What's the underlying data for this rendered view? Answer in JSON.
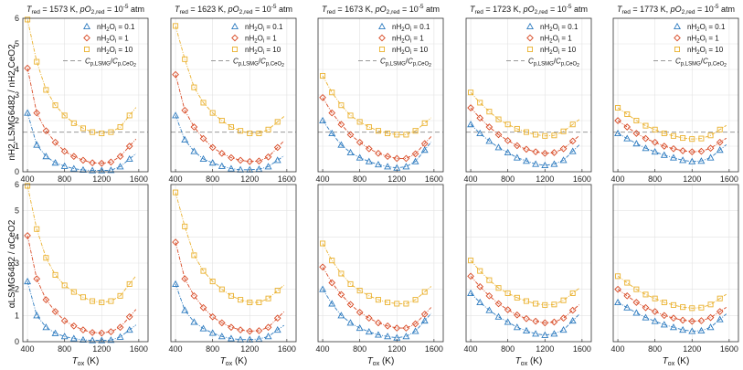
{
  "figure": {
    "ylabel_top": "nH2,LSMG6482 / nH2,CeO2",
    "ylabel_bottom": "αLSMG6482 / αCeO2",
    "xlabel": "Tox (K)"
  },
  "legend": [
    "nH2Oi = 0.1",
    "nH2Oi = 1",
    "nH2Oi = 10",
    "Cp,LSMG/Cp,CeO2"
  ],
  "axes": {
    "x_ticks": [
      400,
      800,
      1200,
      1600
    ],
    "y_ticks": [
      0,
      1,
      2,
      3,
      4,
      5,
      6
    ]
  },
  "colors": {
    "s01": "#2f7cc0",
    "s1": "#d84a25",
    "s10": "#eab12e",
    "ref": "#999999"
  },
  "chart_data": [
    {
      "type": "line",
      "title": "Tred = 1573 K, pO2,red = 10^-5 atm",
      "xlim": [
        350,
        1700
      ],
      "ylim": [
        0,
        6
      ],
      "grid": true,
      "ref_line": 1.55,
      "series": [
        {
          "name": "nH2Oi = 0.1",
          "top": {
            "x": [
              400,
              500,
              600,
              700,
              800,
              900,
              1000,
              1100,
              1200,
              1300,
              1400,
              1500
            ],
            "y": [
              2.3,
              1.05,
              0.6,
              0.35,
              0.22,
              0.12,
              0.07,
              0.05,
              0.05,
              0.06,
              0.2,
              0.5
            ]
          },
          "bottom": {
            "x": [
              400,
              500,
              600,
              700,
              800,
              900,
              1000,
              1100,
              1200,
              1300,
              1400,
              1500
            ],
            "y": [
              2.3,
              1.0,
              0.55,
              0.32,
              0.2,
              0.12,
              0.07,
              0.05,
              0.05,
              0.06,
              0.18,
              0.45
            ]
          }
        },
        {
          "name": "nH2Oi = 1",
          "top": {
            "x": [
              400,
              500,
              600,
              700,
              800,
              900,
              1000,
              1100,
              1200,
              1300,
              1400,
              1500
            ],
            "y": [
              4.05,
              2.3,
              1.6,
              1.15,
              0.8,
              0.6,
              0.45,
              0.35,
              0.33,
              0.38,
              0.6,
              1.0
            ]
          },
          "bottom": {
            "x": [
              400,
              500,
              600,
              700,
              800,
              900,
              1000,
              1100,
              1200,
              1300,
              1400,
              1500
            ],
            "y": [
              4.05,
              2.4,
              1.6,
              1.15,
              0.8,
              0.6,
              0.45,
              0.35,
              0.33,
              0.38,
              0.55,
              0.95
            ]
          }
        },
        {
          "name": "nH2Oi = 10",
          "top": {
            "x": [
              400,
              500,
              600,
              700,
              800,
              900,
              1000,
              1100,
              1200,
              1300,
              1400,
              1500
            ],
            "y": [
              5.95,
              4.3,
              3.2,
              2.6,
              2.2,
              1.9,
              1.7,
              1.55,
              1.5,
              1.55,
              1.75,
              2.2
            ]
          },
          "bottom": {
            "x": [
              400,
              500,
              600,
              700,
              800,
              900,
              1000,
              1100,
              1200,
              1300,
              1400,
              1500
            ],
            "y": [
              5.95,
              4.3,
              3.2,
              2.55,
              2.15,
              1.9,
              1.7,
              1.55,
              1.5,
              1.55,
              1.75,
              2.2
            ]
          }
        }
      ]
    },
    {
      "type": "line",
      "title": "Tred = 1623 K, pO2,red = 10^-5 atm",
      "xlim": [
        350,
        1700
      ],
      "ylim": [
        0,
        6
      ],
      "grid": true,
      "ref_line": 1.55,
      "series": [
        {
          "name": "nH2Oi = 0.1",
          "top": {
            "x": [
              400,
              500,
              600,
              700,
              800,
              900,
              1000,
              1100,
              1200,
              1300,
              1400,
              1500
            ],
            "y": [
              2.2,
              1.25,
              0.8,
              0.5,
              0.35,
              0.22,
              0.12,
              0.08,
              0.08,
              0.1,
              0.2,
              0.45
            ]
          },
          "bottom": {
            "x": [
              400,
              500,
              600,
              700,
              800,
              900,
              1000,
              1100,
              1200,
              1300,
              1400,
              1500
            ],
            "y": [
              2.2,
              1.2,
              0.75,
              0.5,
              0.33,
              0.2,
              0.12,
              0.08,
              0.08,
              0.1,
              0.2,
              0.45
            ]
          }
        },
        {
          "name": "nH2Oi = 1",
          "top": {
            "x": [
              400,
              500,
              600,
              700,
              800,
              900,
              1000,
              1100,
              1200,
              1300,
              1400,
              1500
            ],
            "y": [
              3.8,
              2.4,
              1.75,
              1.3,
              0.95,
              0.72,
              0.55,
              0.45,
              0.4,
              0.42,
              0.58,
              0.95
            ]
          },
          "bottom": {
            "x": [
              400,
              500,
              600,
              700,
              800,
              900,
              1000,
              1100,
              1200,
              1300,
              1400,
              1500
            ],
            "y": [
              3.8,
              2.4,
              1.75,
              1.3,
              0.95,
              0.72,
              0.55,
              0.45,
              0.4,
              0.42,
              0.55,
              0.9
            ]
          }
        },
        {
          "name": "nH2Oi = 10",
          "top": {
            "x": [
              400,
              500,
              600,
              700,
              800,
              900,
              1000,
              1100,
              1200,
              1300,
              1400,
              1500
            ],
            "y": [
              5.7,
              4.4,
              3.3,
              2.7,
              2.3,
              2.0,
              1.75,
              1.6,
              1.5,
              1.5,
              1.65,
              1.95
            ]
          },
          "bottom": {
            "x": [
              400,
              500,
              600,
              700,
              800,
              900,
              1000,
              1100,
              1200,
              1300,
              1400,
              1500
            ],
            "y": [
              5.7,
              4.4,
              3.3,
              2.7,
              2.3,
              2.0,
              1.75,
              1.6,
              1.5,
              1.5,
              1.65,
              1.95
            ]
          }
        }
      ]
    },
    {
      "type": "line",
      "title": "Tred = 1673 K, pO2,red = 10^-5 atm",
      "xlim": [
        350,
        1700
      ],
      "ylim": [
        0,
        6
      ],
      "grid": true,
      "ref_line": 1.55,
      "series": [
        {
          "name": "nH2Oi = 0.1",
          "top": {
            "x": [
              400,
              500,
              600,
              700,
              800,
              900,
              1000,
              1100,
              1200,
              1300,
              1400,
              1500
            ],
            "y": [
              2.0,
              1.5,
              1.05,
              0.75,
              0.55,
              0.4,
              0.28,
              0.2,
              0.15,
              0.2,
              0.4,
              0.85
            ]
          },
          "bottom": {
            "x": [
              400,
              500,
              600,
              700,
              800,
              900,
              1000,
              1100,
              1200,
              1300,
              1400,
              1500
            ],
            "y": [
              2.0,
              1.45,
              1.0,
              0.72,
              0.52,
              0.38,
              0.26,
              0.2,
              0.15,
              0.2,
              0.4,
              0.8
            ]
          }
        },
        {
          "name": "nH2Oi = 1",
          "top": {
            "x": [
              400,
              500,
              600,
              700,
              800,
              900,
              1000,
              1100,
              1200,
              1300,
              1400,
              1500
            ],
            "y": [
              2.9,
              2.3,
              1.85,
              1.45,
              1.15,
              0.9,
              0.72,
              0.6,
              0.52,
              0.52,
              0.7,
              1.1
            ]
          },
          "bottom": {
            "x": [
              400,
              500,
              600,
              700,
              800,
              900,
              1000,
              1100,
              1200,
              1300,
              1400,
              1500
            ],
            "y": [
              2.85,
              2.25,
              1.8,
              1.42,
              1.12,
              0.9,
              0.72,
              0.6,
              0.52,
              0.52,
              0.68,
              1.05
            ]
          }
        },
        {
          "name": "nH2Oi = 10",
          "top": {
            "x": [
              400,
              500,
              600,
              700,
              800,
              900,
              1000,
              1100,
              1200,
              1300,
              1400,
              1500
            ],
            "y": [
              3.75,
              3.1,
              2.6,
              2.2,
              1.95,
              1.75,
              1.6,
              1.5,
              1.45,
              1.45,
              1.6,
              1.9
            ]
          },
          "bottom": {
            "x": [
              400,
              500,
              600,
              700,
              800,
              900,
              1000,
              1100,
              1200,
              1300,
              1400,
              1500
            ],
            "y": [
              3.75,
              3.1,
              2.6,
              2.2,
              1.95,
              1.75,
              1.6,
              1.5,
              1.45,
              1.45,
              1.6,
              1.9
            ]
          }
        }
      ]
    },
    {
      "type": "line",
      "title": "Tred = 1723 K, pO2,red = 10^-5 atm",
      "xlim": [
        350,
        1700
      ],
      "ylim": [
        0,
        6
      ],
      "grid": true,
      "ref_line": 1.55,
      "series": [
        {
          "name": "nH2Oi = 0.1",
          "top": {
            "x": [
              400,
              500,
              600,
              700,
              800,
              900,
              1000,
              1100,
              1200,
              1300,
              1400,
              1500
            ],
            "y": [
              1.85,
              1.5,
              1.2,
              0.95,
              0.75,
              0.55,
              0.42,
              0.3,
              0.25,
              0.3,
              0.45,
              0.8
            ]
          },
          "bottom": {
            "x": [
              400,
              500,
              600,
              700,
              800,
              900,
              1000,
              1100,
              1200,
              1300,
              1400,
              1500
            ],
            "y": [
              1.85,
              1.5,
              1.2,
              0.95,
              0.75,
              0.55,
              0.42,
              0.3,
              0.25,
              0.3,
              0.45,
              0.8
            ]
          }
        },
        {
          "name": "nH2Oi = 1",
          "top": {
            "x": [
              400,
              500,
              600,
              700,
              800,
              900,
              1000,
              1100,
              1200,
              1300,
              1400,
              1500
            ],
            "y": [
              2.5,
              2.1,
              1.75,
              1.45,
              1.22,
              1.02,
              0.88,
              0.78,
              0.72,
              0.75,
              0.9,
              1.2
            ]
          },
          "bottom": {
            "x": [
              400,
              500,
              600,
              700,
              800,
              900,
              1000,
              1100,
              1200,
              1300,
              1400,
              1500
            ],
            "y": [
              2.5,
              2.1,
              1.75,
              1.45,
              1.22,
              1.02,
              0.88,
              0.78,
              0.72,
              0.75,
              0.9,
              1.2
            ]
          }
        },
        {
          "name": "nH2Oi = 10",
          "top": {
            "x": [
              400,
              500,
              600,
              700,
              800,
              900,
              1000,
              1100,
              1200,
              1300,
              1400,
              1500
            ],
            "y": [
              3.1,
              2.7,
              2.35,
              2.05,
              1.85,
              1.68,
              1.55,
              1.45,
              1.4,
              1.42,
              1.58,
              1.85
            ]
          },
          "bottom": {
            "x": [
              400,
              500,
              600,
              700,
              800,
              900,
              1000,
              1100,
              1200,
              1300,
              1400,
              1500
            ],
            "y": [
              3.1,
              2.7,
              2.35,
              2.05,
              1.85,
              1.68,
              1.55,
              1.45,
              1.4,
              1.42,
              1.58,
              1.85
            ]
          }
        }
      ]
    },
    {
      "type": "line",
      "title": "Tred = 1773 K, pO2,red = 10^-5 atm",
      "xlim": [
        350,
        1700
      ],
      "ylim": [
        0,
        6
      ],
      "grid": true,
      "ref_line": 1.55,
      "series": [
        {
          "name": "nH2Oi = 0.1",
          "top": {
            "x": [
              400,
              500,
              600,
              700,
              800,
              900,
              1000,
              1100,
              1200,
              1300,
              1400,
              1500
            ],
            "y": [
              1.5,
              1.3,
              1.1,
              0.92,
              0.78,
              0.65,
              0.55,
              0.45,
              0.4,
              0.42,
              0.55,
              0.85
            ]
          },
          "bottom": {
            "x": [
              400,
              500,
              600,
              700,
              800,
              900,
              1000,
              1100,
              1200,
              1300,
              1400,
              1500
            ],
            "y": [
              1.5,
              1.3,
              1.1,
              0.92,
              0.78,
              0.65,
              0.55,
              0.45,
              0.4,
              0.42,
              0.55,
              0.85
            ]
          }
        },
        {
          "name": "nH2Oi = 1",
          "top": {
            "x": [
              400,
              500,
              600,
              700,
              800,
              900,
              1000,
              1100,
              1200,
              1300,
              1400,
              1500
            ],
            "y": [
              2.0,
              1.75,
              1.5,
              1.3,
              1.15,
              1.0,
              0.9,
              0.82,
              0.78,
              0.8,
              0.92,
              1.15
            ]
          },
          "bottom": {
            "x": [
              400,
              500,
              600,
              700,
              800,
              900,
              1000,
              1100,
              1200,
              1300,
              1400,
              1500
            ],
            "y": [
              2.0,
              1.75,
              1.5,
              1.3,
              1.15,
              1.0,
              0.9,
              0.82,
              0.78,
              0.8,
              0.92,
              1.15
            ]
          }
        },
        {
          "name": "nH2Oi = 10",
          "top": {
            "x": [
              400,
              500,
              600,
              700,
              800,
              900,
              1000,
              1100,
              1200,
              1300,
              1400,
              1500
            ],
            "y": [
              2.5,
              2.25,
              2.0,
              1.8,
              1.65,
              1.5,
              1.4,
              1.32,
              1.28,
              1.3,
              1.42,
              1.65
            ]
          },
          "bottom": {
            "x": [
              400,
              500,
              600,
              700,
              800,
              900,
              1000,
              1100,
              1200,
              1300,
              1400,
              1500
            ],
            "y": [
              2.5,
              2.25,
              2.0,
              1.8,
              1.65,
              1.5,
              1.4,
              1.32,
              1.28,
              1.3,
              1.42,
              1.65
            ]
          }
        }
      ]
    }
  ]
}
